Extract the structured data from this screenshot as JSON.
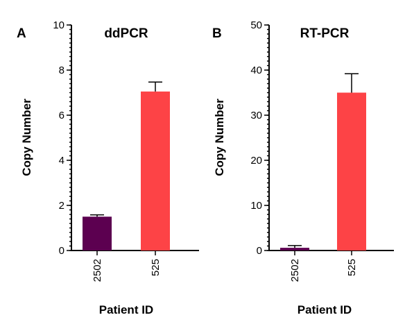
{
  "chart_data": [
    {
      "type": "bar",
      "panel_letter": "A",
      "title": "ddPCR",
      "xlabel": "Patient ID",
      "ylabel": "Copy Number",
      "categories": [
        "2502",
        "525"
      ],
      "values": [
        1.5,
        7.05
      ],
      "errors": [
        0.08,
        0.42
      ],
      "colors": [
        "#5c0050",
        "#fd4346"
      ],
      "ylim": [
        0,
        10
      ],
      "major_ticks": [
        0,
        2,
        4,
        6,
        8,
        10
      ],
      "minor_step": 0.2,
      "grid": false
    },
    {
      "type": "bar",
      "panel_letter": "B",
      "title": "RT-PCR",
      "xlabel": "Patient ID",
      "ylabel": "Copy Number",
      "categories": [
        "2502",
        "525"
      ],
      "values": [
        0.6,
        35.0
      ],
      "errors": [
        0.5,
        4.2
      ],
      "colors": [
        "#5c0050",
        "#fd4346"
      ],
      "ylim": [
        0,
        50
      ],
      "major_ticks": [
        0,
        10,
        20,
        30,
        40,
        50
      ],
      "minor_step": 1,
      "grid": false
    }
  ]
}
